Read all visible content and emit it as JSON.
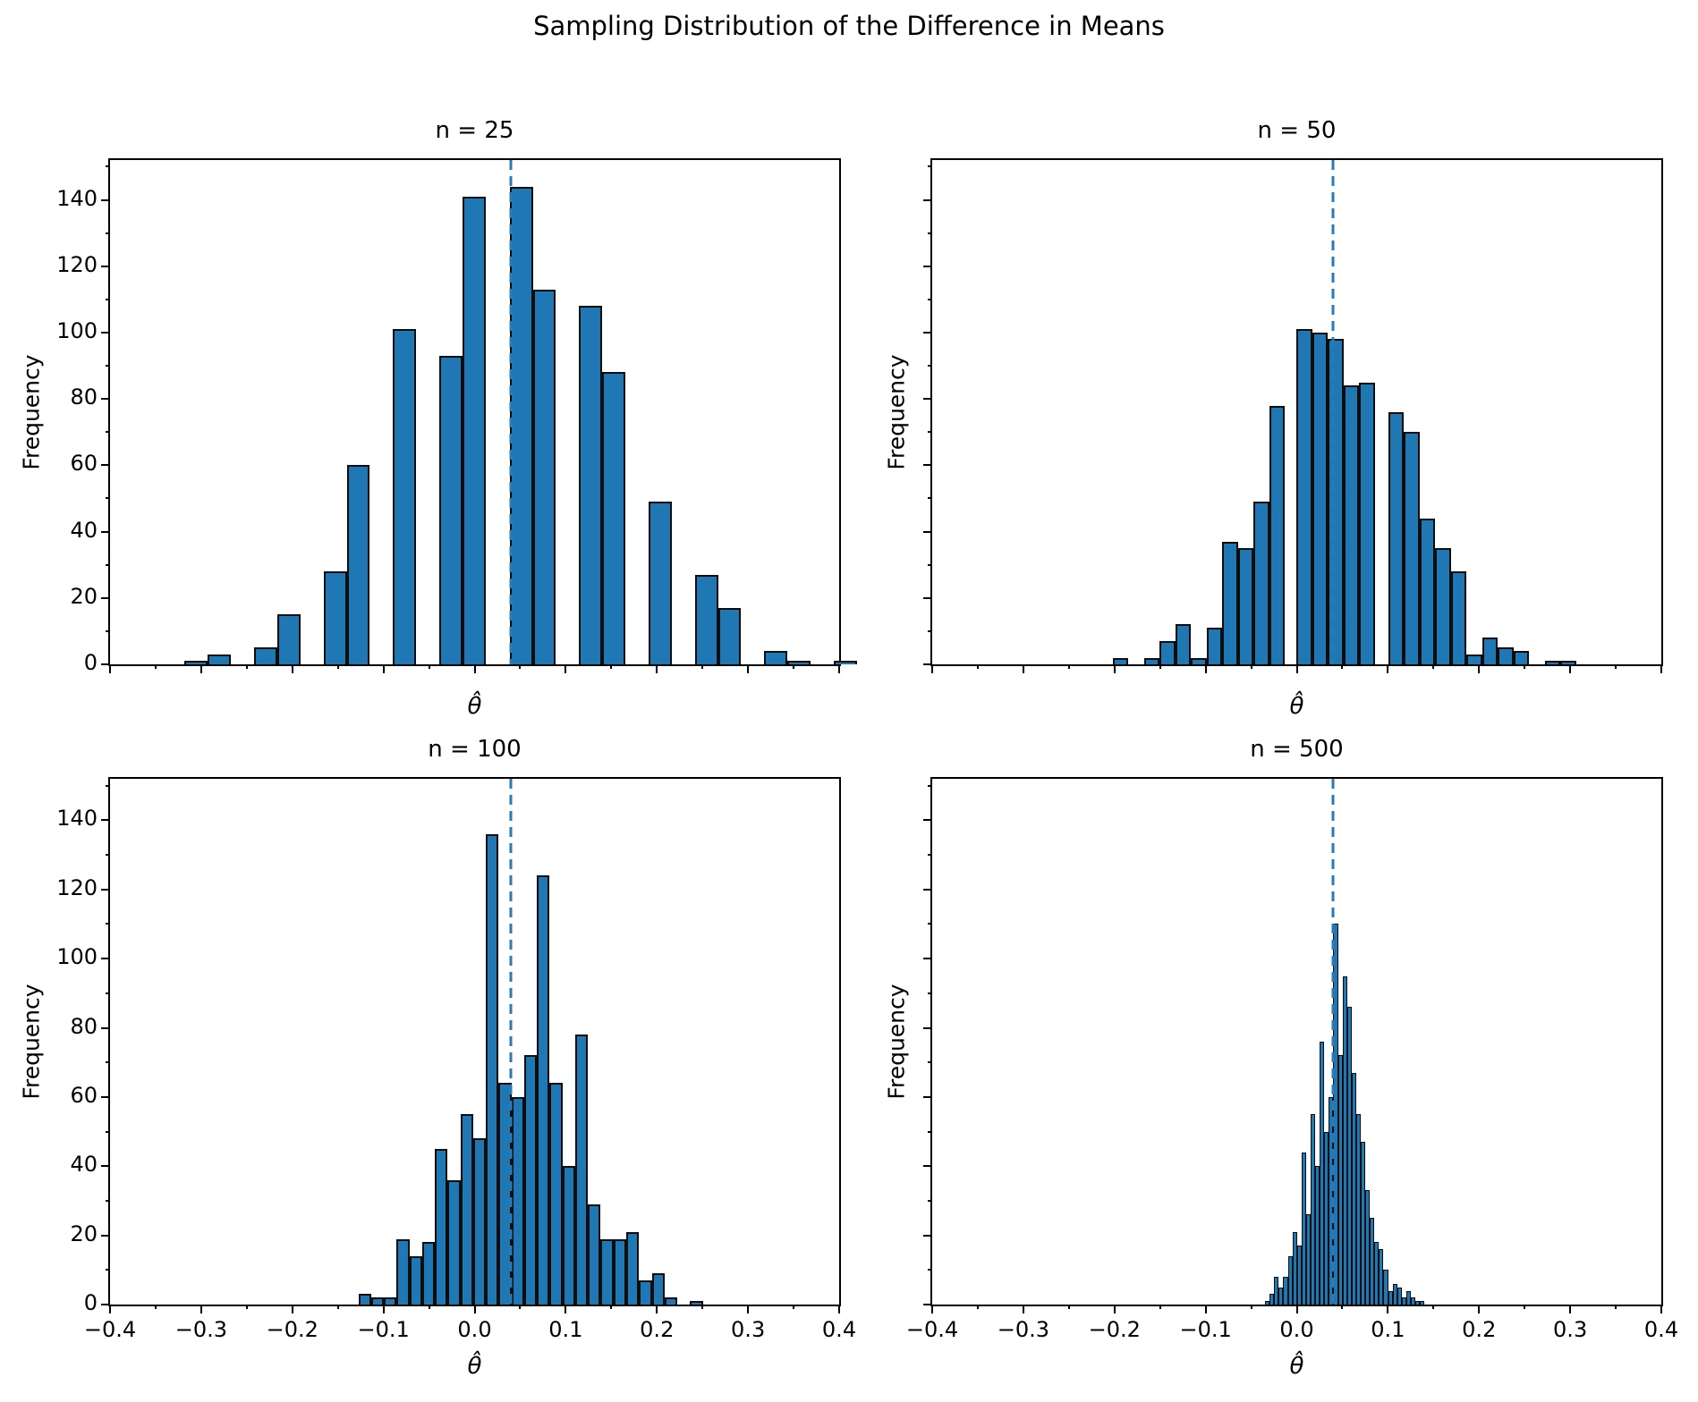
{
  "figure": {
    "suptitle": "Sampling Distribution of the Difference in Means",
    "background": "#ffffff",
    "bar_fill": "#1f77b4",
    "bar_edge": "#0d0d0d",
    "vline_color": "#2a7ab9",
    "vline_style": "dashed",
    "vline_value": 0.04
  },
  "axes": {
    "xlabel": "θ̂",
    "ylabel": "Frequency",
    "xlim": [
      -0.4,
      0.4
    ],
    "ylim": [
      0,
      152
    ],
    "xticks": [
      -0.4,
      -0.3,
      -0.2,
      -0.1,
      0.0,
      0.1,
      0.2,
      0.3,
      0.4
    ],
    "xtick_labels": [
      "−0.4",
      "−0.3",
      "−0.2",
      "−0.1",
      "0.0",
      "0.1",
      "0.2",
      "0.3",
      "0.4"
    ],
    "yticks": [
      0,
      20,
      40,
      60,
      80,
      100,
      120,
      140
    ],
    "ytick_labels": [
      "0",
      "20",
      "40",
      "60",
      "80",
      "100",
      "120",
      "140"
    ],
    "x_minor_step": 0.05,
    "y_minor_step": 10,
    "grid": false
  },
  "chart_data": [
    {
      "type": "bar",
      "title": "n = 25",
      "sample_size": 25,
      "vline": 0.04,
      "bin_width": 0.0254,
      "show_x_tick_labels": false,
      "show_y_tick_labels": true,
      "bars": [
        [
          -0.3181,
          1
        ],
        [
          -0.2927,
          3
        ],
        [
          -0.2419,
          5
        ],
        [
          -0.2165,
          15
        ],
        [
          -0.1657,
          28
        ],
        [
          -0.1403,
          60
        ],
        [
          -0.0895,
          101
        ],
        [
          -0.0387,
          93
        ],
        [
          -0.0133,
          141
        ],
        [
          0.0385,
          144
        ],
        [
          0.0639,
          113
        ],
        [
          0.1147,
          108
        ],
        [
          0.1401,
          88
        ],
        [
          0.1909,
          49
        ],
        [
          0.2417,
          27
        ],
        [
          0.2671,
          17
        ],
        [
          0.3179,
          4
        ],
        [
          0.3433,
          1
        ],
        [
          0.3941,
          1
        ]
      ]
    },
    {
      "type": "bar",
      "title": "n = 50",
      "sample_size": 50,
      "vline": 0.04,
      "bin_width": 0.0172,
      "show_x_tick_labels": false,
      "show_y_tick_labels": false,
      "bars": [
        [
          -0.2022,
          2
        ],
        [
          -0.1678,
          2
        ],
        [
          -0.1506,
          7
        ],
        [
          -0.1334,
          12
        ],
        [
          -0.1162,
          2
        ],
        [
          -0.099,
          11
        ],
        [
          -0.0818,
          37
        ],
        [
          -0.0646,
          35
        ],
        [
          -0.0474,
          49
        ],
        [
          -0.0302,
          78
        ],
        [
          -0.0001,
          101
        ],
        [
          0.0171,
          100
        ],
        [
          0.0343,
          98
        ],
        [
          0.0515,
          84
        ],
        [
          0.0687,
          85
        ],
        [
          0.1003,
          76
        ],
        [
          0.1175,
          70
        ],
        [
          0.1347,
          44
        ],
        [
          0.1519,
          35
        ],
        [
          0.1691,
          28
        ],
        [
          0.1863,
          3
        ],
        [
          0.2035,
          8
        ],
        [
          0.2207,
          5
        ],
        [
          0.2379,
          4
        ],
        [
          0.2723,
          1
        ],
        [
          0.2895,
          1
        ]
      ]
    },
    {
      "type": "bar",
      "title": "n = 100",
      "sample_size": 100,
      "vline": 0.04,
      "bin_width": 0.014,
      "show_x_tick_labels": true,
      "show_y_tick_labels": true,
      "bars": [
        [
          -0.1276,
          3
        ],
        [
          -0.1136,
          2
        ],
        [
          -0.0996,
          2
        ],
        [
          -0.0856,
          19
        ],
        [
          -0.0716,
          14
        ],
        [
          -0.0576,
          18
        ],
        [
          -0.0436,
          45
        ],
        [
          -0.0296,
          36
        ],
        [
          -0.0156,
          55
        ],
        [
          -0.0016,
          48
        ],
        [
          0.0124,
          136
        ],
        [
          0.0264,
          64
        ],
        [
          0.0404,
          60
        ],
        [
          0.0544,
          72
        ],
        [
          0.0684,
          124
        ],
        [
          0.0824,
          64
        ],
        [
          0.0964,
          40
        ],
        [
          0.1104,
          78
        ],
        [
          0.1244,
          29
        ],
        [
          0.1384,
          19
        ],
        [
          0.1524,
          19
        ],
        [
          0.1664,
          21
        ],
        [
          0.1804,
          7
        ],
        [
          0.1944,
          9
        ],
        [
          0.2084,
          2
        ],
        [
          0.2364,
          1
        ]
      ]
    },
    {
      "type": "bar",
      "title": "n = 500",
      "sample_size": 500,
      "vline": 0.04,
      "bin_width": 0.005,
      "show_x_tick_labels": true,
      "show_y_tick_labels": false,
      "bars": [
        [
          -0.0348,
          1
        ],
        [
          -0.0298,
          3
        ],
        [
          -0.0248,
          8
        ],
        [
          -0.0198,
          5
        ],
        [
          -0.0148,
          8
        ],
        [
          -0.0098,
          14
        ],
        [
          -0.0048,
          21
        ],
        [
          0.0002,
          17
        ],
        [
          0.0052,
          44
        ],
        [
          0.0102,
          26
        ],
        [
          0.0152,
          55
        ],
        [
          0.0202,
          40
        ],
        [
          0.0252,
          76
        ],
        [
          0.0302,
          50
        ],
        [
          0.0352,
          60
        ],
        [
          0.0402,
          110
        ],
        [
          0.0452,
          72
        ],
        [
          0.0502,
          95
        ],
        [
          0.0552,
          86
        ],
        [
          0.0602,
          67
        ],
        [
          0.0652,
          55
        ],
        [
          0.0702,
          47
        ],
        [
          0.0752,
          33
        ],
        [
          0.0802,
          25
        ],
        [
          0.0852,
          18
        ],
        [
          0.0902,
          16
        ],
        [
          0.0952,
          10
        ],
        [
          0.1002,
          4
        ],
        [
          0.1052,
          6
        ],
        [
          0.1102,
          5
        ],
        [
          0.1152,
          2
        ],
        [
          0.1202,
          4
        ],
        [
          0.1252,
          2
        ],
        [
          0.1302,
          1
        ],
        [
          0.1352,
          1
        ]
      ]
    }
  ]
}
